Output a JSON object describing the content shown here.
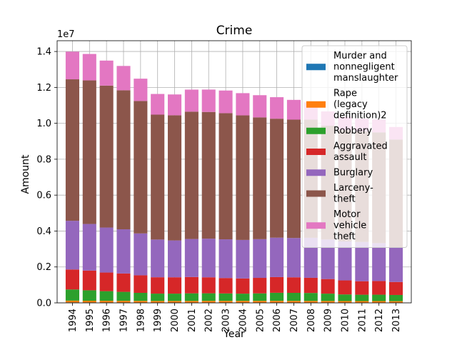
{
  "chart_data": {
    "type": "bar",
    "stacked": true,
    "title": "Crime",
    "xlabel": "Year",
    "ylabel": "Amount",
    "y_offset_text": "1e7",
    "ylim": [
      0,
      14600000
    ],
    "yticks": [
      0,
      2000000,
      4000000,
      6000000,
      8000000,
      10000000,
      12000000,
      14000000
    ],
    "ytick_labels": [
      "0.0",
      "0.2",
      "0.4",
      "0.6",
      "0.8",
      "1.0",
      "1.2",
      "1.4"
    ],
    "grid": true,
    "legend_position": "upper-right",
    "categories": [
      "1994",
      "1995",
      "1996",
      "1997",
      "1998",
      "1999",
      "2000",
      "2001",
      "2002",
      "2003",
      "2004",
      "2005",
      "2006",
      "2007",
      "2008",
      "2009",
      "2010",
      "2011",
      "2012",
      "2013"
    ],
    "series": [
      {
        "name": "Murder and nonnegligent manslaughter",
        "color": "#1f77b4",
        "values": [
          23330,
          21610,
          19650,
          18210,
          16970,
          15520,
          15590,
          16040,
          16230,
          16530,
          16150,
          16740,
          17310,
          17130,
          16470,
          15400,
          14720,
          14660,
          14830,
          14200
        ]
      },
      {
        "name": "Rape (legacy definition)2",
        "color": "#ff7f0e",
        "values": [
          102220,
          97470,
          96250,
          96150,
          93140,
          89410,
          90180,
          90860,
          95240,
          93880,
          95090,
          94350,
          94470,
          92160,
          90750,
          89240,
          85590,
          84180,
          85140,
          79770
        ]
      },
      {
        "name": "Robbery",
        "color": "#2ca02c",
        "values": [
          618950,
          580510,
          535590,
          498530,
          447190,
          409370,
          408020,
          423560,
          420810,
          414240,
          401470,
          417440,
          449250,
          447320,
          443560,
          408740,
          369090,
          354520,
          355050,
          345030
        ]
      },
      {
        "name": "Aggravated assault",
        "color": "#d62728",
        "values": [
          1113180,
          1099210,
          1037050,
          1023200,
          976580,
          911740,
          910740,
          909020,
          891410,
          859030,
          847380,
          862950,
          874100,
          866360,
          843680,
          812510,
          781840,
          752420,
          762010,
          724150
        ]
      },
      {
        "name": "Burglary",
        "color": "#9467bd",
        "values": [
          2712770,
          2593780,
          2506400,
          2460530,
          2332740,
          2100740,
          2050990,
          2116530,
          2151250,
          2154830,
          2144450,
          2155450,
          2194990,
          2190200,
          2228470,
          2203310,
          2168460,
          2185140,
          2109930,
          1928470
        ]
      },
      {
        "name": "Larceny-theft",
        "color": "#8c564b",
        "values": [
          7879810,
          7997710,
          7904690,
          7743760,
          7376310,
          6955520,
          6971590,
          7092270,
          7057380,
          7026800,
          6937090,
          6783450,
          6626360,
          6591540,
          6586210,
          6338100,
          6204600,
          6151100,
          6168090,
          6004450
        ]
      },
      {
        "name": "Motor vehicle theft",
        "color": "#e377c2",
        "values": [
          1539290,
          1472440,
          1394240,
          1354190,
          1242780,
          1152080,
          1160000,
          1228390,
          1246650,
          1261230,
          1237850,
          1235860,
          1198250,
          1100470,
          959060,
          795650,
          739570,
          716510,
          723190,
          699590
        ]
      }
    ]
  }
}
